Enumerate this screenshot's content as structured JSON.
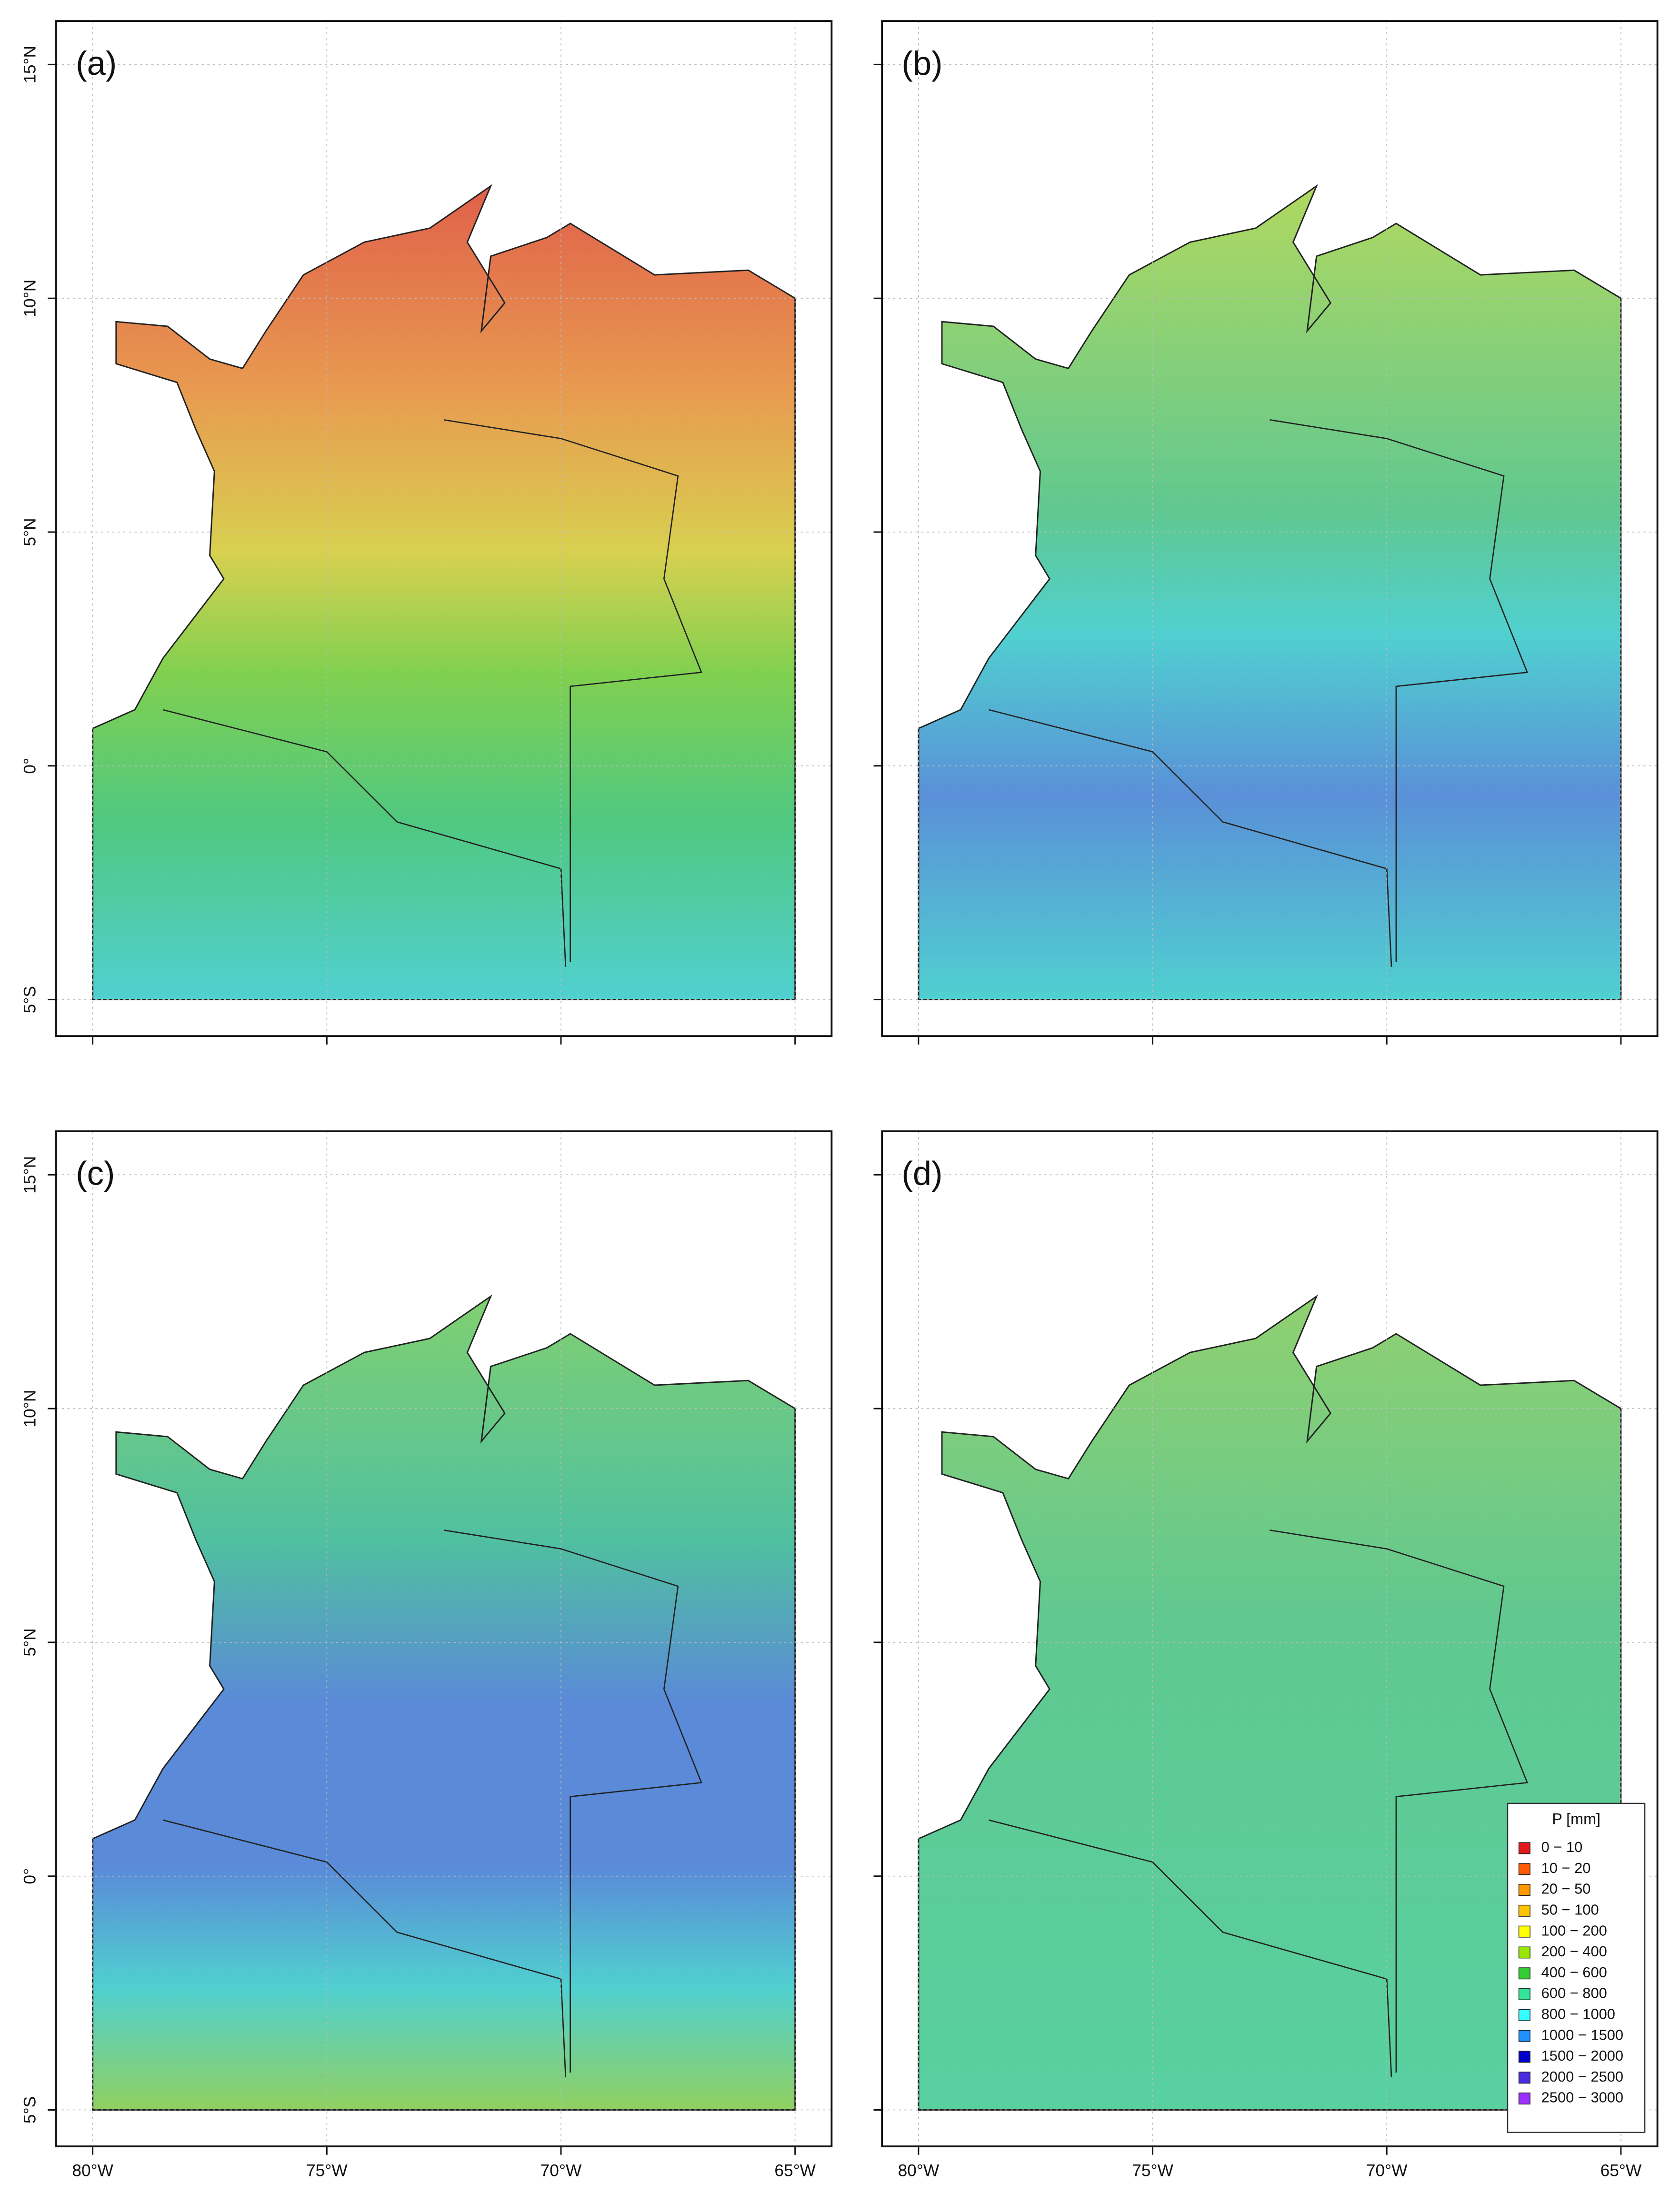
{
  "panels": [
    {
      "label": "(a)"
    },
    {
      "label": "(b)"
    },
    {
      "label": "(c)"
    },
    {
      "label": "(d)"
    }
  ],
  "axes": {
    "xlim": [
      -80.78,
      -64.22
    ],
    "ylim": [
      -5.78,
      15.93
    ],
    "xticks": [
      {
        "value": -80,
        "label": "80°W"
      },
      {
        "value": -75,
        "label": "75°W"
      },
      {
        "value": -70,
        "label": "70°W"
      },
      {
        "value": -65,
        "label": "65°W"
      }
    ],
    "yticks": [
      {
        "value": 15,
        "label": "15°N"
      },
      {
        "value": 10,
        "label": "10°N"
      },
      {
        "value": 5,
        "label": "5°N"
      },
      {
        "value": 0,
        "label": "0°"
      },
      {
        "value": -5,
        "label": "5°S"
      }
    ]
  },
  "legend": {
    "title": "P [mm]",
    "items": [
      {
        "label": "0 − 10",
        "color": "#e41a1c"
      },
      {
        "label": "10 − 20",
        "color": "#ff5a00"
      },
      {
        "label": "20 − 50",
        "color": "#ff9900"
      },
      {
        "label": "50 − 100",
        "color": "#ffc400"
      },
      {
        "label": "100 − 200",
        "color": "#ffff00"
      },
      {
        "label": "200 − 400",
        "color": "#99e600"
      },
      {
        "label": "400 − 600",
        "color": "#33cc33"
      },
      {
        "label": "600 − 800",
        "color": "#33e699"
      },
      {
        "label": "800 − 1000",
        "color": "#33ffff"
      },
      {
        "label": "1000 − 1500",
        "color": "#1e90ff"
      },
      {
        "label": "1500 − 2000",
        "color": "#0000cd"
      },
      {
        "label": "2000 − 2500",
        "color": "#4b2be2"
      },
      {
        "label": "2500 − 3000",
        "color": "#9b30ff"
      }
    ]
  }
}
